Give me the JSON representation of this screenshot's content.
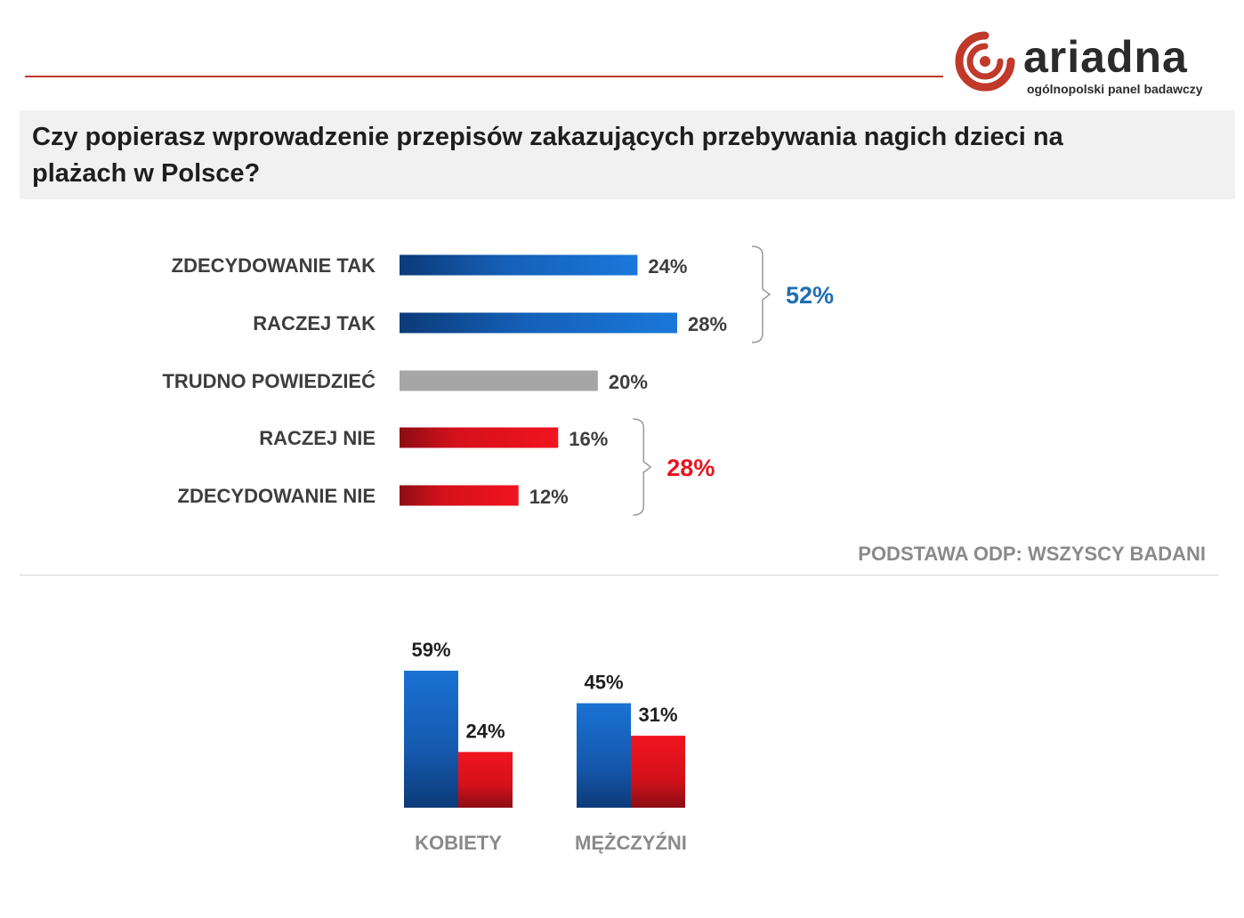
{
  "brand": {
    "name": "ariadna",
    "tagline": "ogólnopolski panel badawczy",
    "accent_color": "#c0392b"
  },
  "title": "Czy popierasz wprowadzenie przepisów zakazujących przebywania nagich dzieci na plażach w Polsce?",
  "base_note": "PODSTAWA ODP: WSZYSCY BADANI",
  "chart_data": [
    {
      "type": "bar",
      "orientation": "horizontal",
      "categories": [
        "ZDECYDOWANIE TAK",
        "RACZEJ TAK",
        "TRUDNO POWIEDZIEĆ",
        "RACZEJ NIE",
        "ZDECYDOWANIE NIE"
      ],
      "values": [
        24,
        28,
        20,
        16,
        12
      ],
      "value_labels": [
        "24%",
        "28%",
        "20%",
        "16%",
        "12%"
      ],
      "colors": [
        "#1a6fd0",
        "#1a6fd0",
        "#a6a6a6",
        "#e8141f",
        "#e8141f"
      ],
      "xlim": [
        0,
        28
      ],
      "grid": false,
      "annotations": [
        {
          "label": "52%",
          "groups": [
            "ZDECYDOWANIE TAK",
            "RACZEJ TAK"
          ],
          "color": "#1f6fb5"
        },
        {
          "label": "28%",
          "groups": [
            "RACZEJ NIE",
            "ZDECYDOWANIE NIE"
          ],
          "color": "#e8141f"
        }
      ]
    },
    {
      "type": "bar",
      "orientation": "vertical",
      "categories": [
        "KOBIETY",
        "MĘŻCZYŹNI"
      ],
      "series": [
        {
          "values": [
            59,
            45
          ],
          "value_labels": [
            "59%",
            "45%"
          ],
          "color": "#1a6fd0"
        },
        {
          "values": [
            24,
            31
          ],
          "value_labels": [
            "24%",
            "31%"
          ],
          "color": "#e8141f"
        }
      ],
      "ylim": [
        0,
        59
      ],
      "grid": false
    }
  ]
}
